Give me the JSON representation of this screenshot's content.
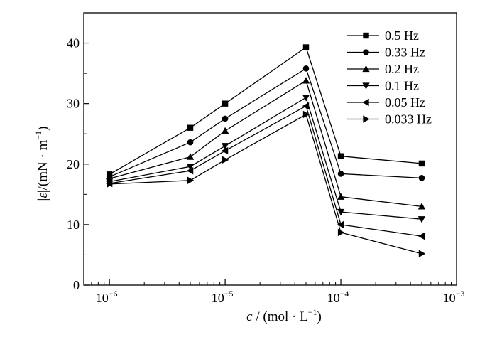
{
  "chart_data": {
    "type": "line",
    "title": "",
    "xlabel": {
      "var": "c",
      "rest": " / (mol · L",
      "sup": "−1",
      "tail": ")"
    },
    "ylabel": {
      "var": "ε",
      "rest": "/(mN · m",
      "sup": "−1",
      "tail": ")"
    },
    "x_scale": "log",
    "xlim": [
      6e-07,
      0.001
    ],
    "ylim": [
      0,
      45
    ],
    "x_ticks": [
      {
        "value": 1e-06,
        "base": "10",
        "exp": "−6"
      },
      {
        "value": 1e-05,
        "base": "10",
        "exp": "−5"
      },
      {
        "value": 0.0001,
        "base": "10",
        "exp": "−4"
      },
      {
        "value": 0.001,
        "base": "10",
        "exp": "−3"
      }
    ],
    "y_ticks": [
      {
        "value": 0,
        "label": "0"
      },
      {
        "value": 10,
        "label": "10"
      },
      {
        "value": 20,
        "label": "20"
      },
      {
        "value": 30,
        "label": "30"
      },
      {
        "value": 40,
        "label": "40"
      }
    ],
    "x": [
      1e-06,
      5e-06,
      1e-05,
      5e-05,
      0.0001,
      0.0005
    ],
    "legend_position": "top-right",
    "series": [
      {
        "name": "0.5 Hz",
        "marker": "square",
        "values": [
          18.3,
          26.0,
          30.0,
          39.3,
          21.3,
          20.1
        ]
      },
      {
        "name": "0.33 Hz",
        "marker": "circle",
        "values": [
          17.9,
          23.6,
          27.5,
          35.8,
          18.4,
          17.7
        ]
      },
      {
        "name": "0.2 Hz",
        "marker": "triangle-up",
        "values": [
          17.6,
          21.2,
          25.5,
          33.8,
          14.6,
          13.0
        ]
      },
      {
        "name": "0.1 Hz",
        "marker": "triangle-down",
        "values": [
          17.1,
          19.6,
          23.0,
          31.0,
          12.1,
          10.9
        ]
      },
      {
        "name": "0.05 Hz",
        "marker": "triangle-left",
        "values": [
          16.8,
          18.9,
          22.2,
          29.6,
          10.0,
          8.1
        ]
      },
      {
        "name": "0.033 Hz",
        "marker": "triangle-right",
        "values": [
          16.7,
          17.3,
          20.7,
          28.2,
          8.7,
          5.2
        ]
      }
    ]
  }
}
